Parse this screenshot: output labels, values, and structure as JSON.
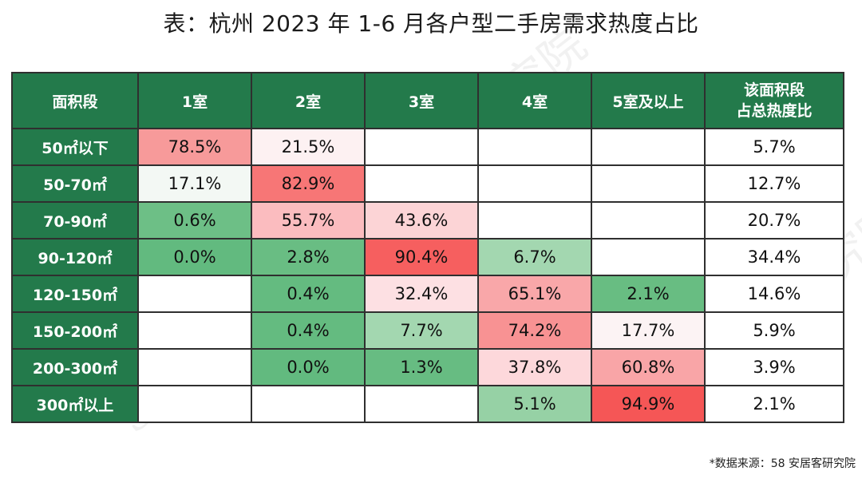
{
  "title": "表：杭州 2023 年 1-6 月各户型二手房需求热度占比",
  "watermark": "58安居客研究院",
  "table": {
    "header": [
      "面积段",
      "1室",
      "2室",
      "3室",
      "4室",
      "5室及以上",
      "该面积段\n占总热度比"
    ],
    "rows": [
      {
        "label": "50㎡以下",
        "cells": [
          "78.5%",
          "21.5%",
          "",
          "",
          "",
          "5.7%"
        ]
      },
      {
        "label": "50-70㎡",
        "cells": [
          "17.1%",
          "82.9%",
          "",
          "",
          "",
          "12.7%"
        ]
      },
      {
        "label": "70-90㎡",
        "cells": [
          "0.6%",
          "55.7%",
          "43.6%",
          "",
          "",
          "20.7%"
        ]
      },
      {
        "label": "90-120㎡",
        "cells": [
          "0.0%",
          "2.8%",
          "90.4%",
          "6.7%",
          "",
          "34.4%"
        ]
      },
      {
        "label": "120-150㎡",
        "cells": [
          "",
          "0.4%",
          "32.4%",
          "65.1%",
          "2.1%",
          "14.6%"
        ]
      },
      {
        "label": "150-200㎡",
        "cells": [
          "",
          "0.4%",
          "7.7%",
          "74.2%",
          "17.7%",
          "5.9%"
        ]
      },
      {
        "label": "200-300㎡",
        "cells": [
          "",
          "0.0%",
          "1.3%",
          "37.8%",
          "60.8%",
          "3.9%"
        ]
      },
      {
        "label": "300㎡以上",
        "cells": [
          "",
          "",
          "",
          "5.1%",
          "94.9%",
          "2.1%"
        ]
      }
    ],
    "cell_colors": [
      [
        "#f79a9a",
        "#fdf1f2",
        "#ffffff",
        "#ffffff",
        "#ffffff",
        "#ffffff"
      ],
      [
        "#f3f8f4",
        "#f77676",
        "#ffffff",
        "#ffffff",
        "#ffffff",
        "#ffffff"
      ],
      [
        "#6dbf86",
        "#fbbcbf",
        "#fcd4d6",
        "#ffffff",
        "#ffffff",
        "#ffffff"
      ],
      [
        "#62ba7f",
        "#69bd83",
        "#f65f5f",
        "#a3d7b0",
        "#ffffff",
        "#ffffff"
      ],
      [
        "#ffffff",
        "#64bb80",
        "#fde0e3",
        "#f9a7a9",
        "#68bd82",
        "#ffffff"
      ],
      [
        "#ffffff",
        "#64bb80",
        "#a3d7b0",
        "#f89293",
        "#fcf3f4",
        "#ffffff"
      ],
      [
        "#ffffff",
        "#62ba7f",
        "#67bc82",
        "#fdd8db",
        "#f9a5a7",
        "#ffffff"
      ],
      [
        "#ffffff",
        "#ffffff",
        "#ffffff",
        "#96d1a5",
        "#f55656",
        "#ffffff"
      ]
    ],
    "header_color": "#237a4b"
  },
  "source": "*数据来源：58 安居客研究院"
}
